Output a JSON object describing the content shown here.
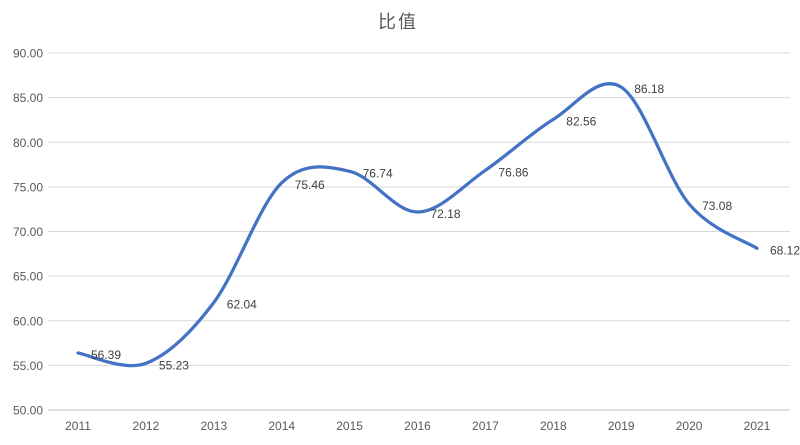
{
  "chart_data": {
    "type": "line",
    "title": "比值",
    "xlabel": "",
    "ylabel": "",
    "categories": [
      "2011",
      "2012",
      "2013",
      "2014",
      "2015",
      "2016",
      "2017",
      "2018",
      "2019",
      "2020",
      "2021"
    ],
    "values": [
      56.39,
      55.23,
      62.04,
      75.46,
      76.74,
      72.18,
      76.86,
      82.56,
      86.18,
      73.08,
      68.12
    ],
    "data_labels": [
      "56.39",
      "55.23",
      "62.04",
      "75.46",
      "76.74",
      "72.18",
      "76.86",
      "82.56",
      "86.18",
      "73.08",
      "68.12"
    ],
    "ylim": [
      50,
      90
    ],
    "ytick_step": 5,
    "yticks": [
      "90.00",
      "85.00",
      "80.00",
      "75.00",
      "70.00",
      "65.00",
      "60.00",
      "55.00",
      "50.00"
    ],
    "grid": true,
    "legend": "none",
    "smooth": true,
    "line_color": "#4472C4"
  },
  "colors": {
    "line": "#4472C4",
    "gridline": "#D9D9D9",
    "axis_line": "#BFBFBF",
    "axis_text": "#595959",
    "label_text": "#404040",
    "title_text": "#595959",
    "background": "#FFFFFF"
  }
}
